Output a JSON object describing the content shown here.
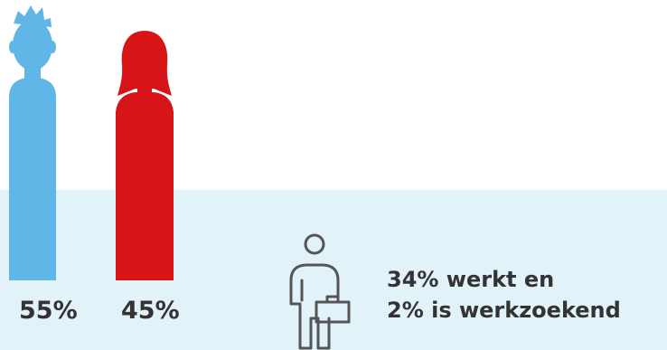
{
  "gender_split": {
    "men": {
      "percentage": "55%",
      "icon": "male-figure-icon",
      "color": "#5fb6e7"
    },
    "women": {
      "percentage": "45%",
      "icon": "female-figure-icon",
      "color": "#d71518"
    }
  },
  "employment": {
    "icon": "worker-with-briefcase-icon",
    "line1": "34% werkt en",
    "line2": "2% is werkzoekend",
    "icon_color": "#555555"
  },
  "colors": {
    "background_band": "#e2f2f9",
    "text": "#333333"
  }
}
